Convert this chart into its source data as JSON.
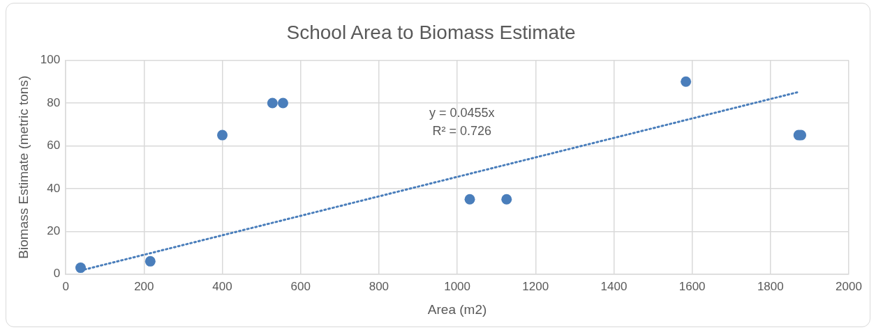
{
  "chart_data": {
    "type": "scatter",
    "title": "School Area to Biomass Estimate",
    "xlabel": "Area (m2)",
    "ylabel": "Biomass Estimate (metric tons)",
    "series": [
      {
        "color": "#4a7ebb",
        "x": [
          38,
          216,
          400,
          528,
          555,
          1032,
          1126,
          1584,
          1872,
          1878
        ],
        "values": [
          3,
          6,
          65,
          80,
          80,
          35,
          35,
          90,
          65,
          65
        ]
      },
      {
        "type": "line",
        "color": "#4a7ebb",
        "line_style": "dotted",
        "marker": "none",
        "x": [
          38,
          1868
        ],
        "values": [
          1.7,
          85
        ]
      }
    ],
    "annotations": [
      "y = 0.0455x",
      "R² = 0.726"
    ],
    "marker": "circle",
    "grid": true,
    "xlim": [
      0,
      2000
    ],
    "xticks": [
      0,
      200,
      400,
      600,
      800,
      1000,
      1200,
      1400,
      1600,
      1800,
      2000
    ],
    "ylim": [
      0,
      100
    ],
    "yticks": [
      0,
      20,
      40,
      60,
      80,
      100
    ]
  }
}
